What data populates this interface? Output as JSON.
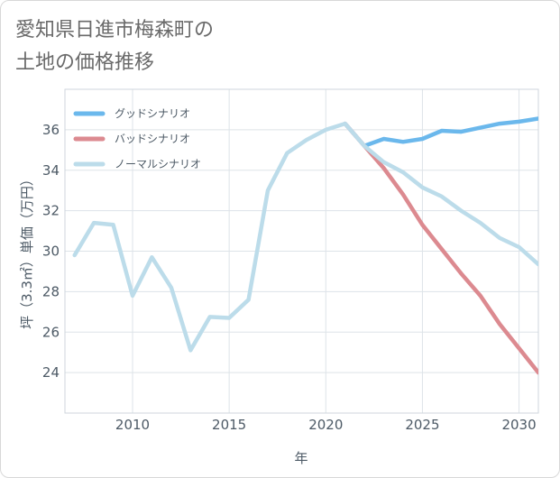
{
  "title_lines": [
    "愛知県日進市梅森町の",
    "土地の価格推移"
  ],
  "chart_data": {
    "type": "line",
    "title": "愛知県日進市梅森町の土地の価格推移",
    "xlabel": "年",
    "ylabel": "坪（3.3㎡）単価（万円）",
    "xlim": [
      2006.5,
      2031
    ],
    "ylim": [
      22,
      38
    ],
    "xticks": [
      2010,
      2015,
      2020,
      2025,
      2030
    ],
    "yticks": [
      24,
      26,
      28,
      30,
      32,
      34,
      36
    ],
    "grid": true,
    "legend_position": "top-left",
    "series": [
      {
        "name": "グッドシナリオ",
        "color": "#6bb8ec",
        "x": [
          2021,
          2022,
          2023,
          2024,
          2025,
          2026,
          2027,
          2028,
          2029,
          2030,
          2031
        ],
        "values": [
          36.3,
          35.2,
          35.55,
          35.4,
          35.55,
          35.95,
          35.9,
          36.1,
          36.3,
          36.4,
          36.55
        ]
      },
      {
        "name": "バッドシナリオ",
        "color": "#dc8a90",
        "x": [
          2021,
          2022,
          2023,
          2024,
          2025,
          2026,
          2027,
          2028,
          2029,
          2030,
          2031
        ],
        "values": [
          36.3,
          35.2,
          34.1,
          32.8,
          31.3,
          30.1,
          28.9,
          27.8,
          26.4,
          25.2,
          24.0
        ]
      },
      {
        "name": "ノーマルシナリオ",
        "color": "#bcdcea",
        "x": [
          2007,
          2008,
          2009,
          2010,
          2011,
          2012,
          2013,
          2014,
          2015,
          2016,
          2017,
          2018,
          2019,
          2020,
          2021,
          2022,
          2023,
          2024,
          2025,
          2026,
          2027,
          2028,
          2029,
          2030,
          2031
        ],
        "values": [
          29.8,
          31.4,
          31.3,
          27.8,
          29.7,
          28.2,
          25.1,
          26.75,
          26.7,
          27.6,
          33.0,
          34.85,
          35.5,
          36.0,
          36.3,
          35.2,
          34.4,
          33.9,
          33.15,
          32.7,
          32.0,
          31.4,
          30.65,
          30.2,
          29.35
        ]
      }
    ]
  }
}
